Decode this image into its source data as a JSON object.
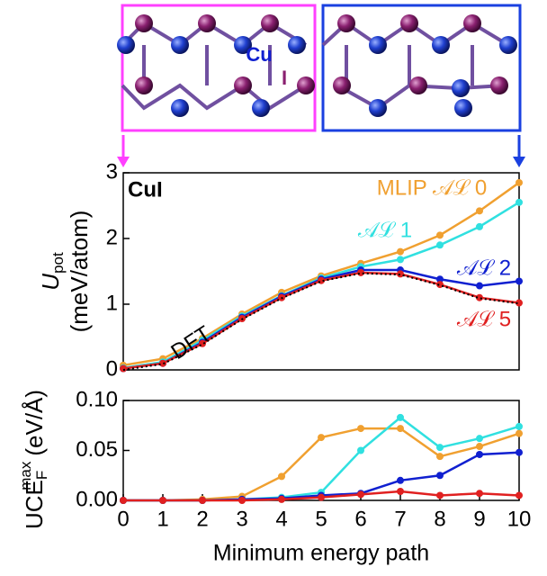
{
  "structure": {
    "labels": [
      "Cu",
      "I"
    ]
  },
  "chart_data": [
    {
      "type": "line",
      "panel_label": "CuI",
      "ylabel": {
        "main": "U",
        "sub": "pot",
        "unit": "(meV/atom)"
      },
      "x": [
        0,
        1,
        2,
        3,
        4,
        5,
        6,
        7,
        8,
        9,
        10
      ],
      "xlim": [
        0,
        10
      ],
      "ylim": [
        0,
        3
      ],
      "yticks": [
        0,
        1,
        2,
        3
      ],
      "series": [
        {
          "name": "MLIP 𝒜ℒ 0",
          "color": "#f0a030",
          "values": [
            0.07,
            0.17,
            0.48,
            0.85,
            1.18,
            1.43,
            1.62,
            1.8,
            2.05,
            2.42,
            2.85
          ]
        },
        {
          "name": "𝒜ℒ 1",
          "color": "#30e0e0",
          "values": [
            0.03,
            0.12,
            0.45,
            0.82,
            1.13,
            1.4,
            1.57,
            1.68,
            1.9,
            2.18,
            2.55
          ]
        },
        {
          "name": "𝒜ℒ 2",
          "color": "#1020d0",
          "values": [
            0.02,
            0.1,
            0.42,
            0.8,
            1.12,
            1.38,
            1.52,
            1.52,
            1.38,
            1.28,
            1.35
          ]
        },
        {
          "name": "𝒜ℒ 5",
          "color": "#e02020",
          "values": [
            0.02,
            0.1,
            0.4,
            0.78,
            1.1,
            1.36,
            1.48,
            1.46,
            1.3,
            1.1,
            1.02
          ]
        },
        {
          "name": "DFT",
          "color": "#000000",
          "style": "dotted",
          "values": [
            0.0,
            0.09,
            0.39,
            0.77,
            1.09,
            1.35,
            1.47,
            1.45,
            1.29,
            1.09,
            1.01
          ]
        }
      ]
    },
    {
      "type": "line",
      "ylabel": {
        "main": "UCE",
        "sub": "F",
        "sup": "max",
        "unit": "(eV/Å)"
      },
      "xlabel": "Minimum energy path",
      "x": [
        0,
        1,
        2,
        3,
        4,
        5,
        6,
        7,
        8,
        9,
        10
      ],
      "xlim": [
        0,
        10
      ],
      "xticks": [
        0,
        1,
        2,
        3,
        4,
        5,
        6,
        7,
        8,
        9,
        10
      ],
      "ylim": [
        0,
        0.1
      ],
      "yticks": [
        {
          "value": 0,
          "label": "0.00"
        },
        {
          "value": 0.05,
          "label": "0.05"
        },
        {
          "value": 0.1,
          "label": "0.10"
        }
      ],
      "series": [
        {
          "color": "#f0a030",
          "values": [
            0,
            0,
            0.001,
            0.004,
            0.024,
            0.063,
            0.072,
            0.072,
            0.044,
            0.054,
            0.067
          ]
        },
        {
          "color": "#30e0e0",
          "values": [
            0,
            0,
            0,
            0.001,
            0.003,
            0.008,
            0.05,
            0.083,
            0.053,
            0.062,
            0.074
          ]
        },
        {
          "color": "#1020d0",
          "values": [
            0,
            0,
            0,
            0.001,
            0.002,
            0.005,
            0.007,
            0.02,
            0.025,
            0.046,
            0.048
          ]
        },
        {
          "color": "#e02020",
          "values": [
            0,
            0,
            0,
            0,
            0.001,
            0.003,
            0.006,
            0.009,
            0.005,
            0.007,
            0.005
          ]
        }
      ]
    }
  ]
}
